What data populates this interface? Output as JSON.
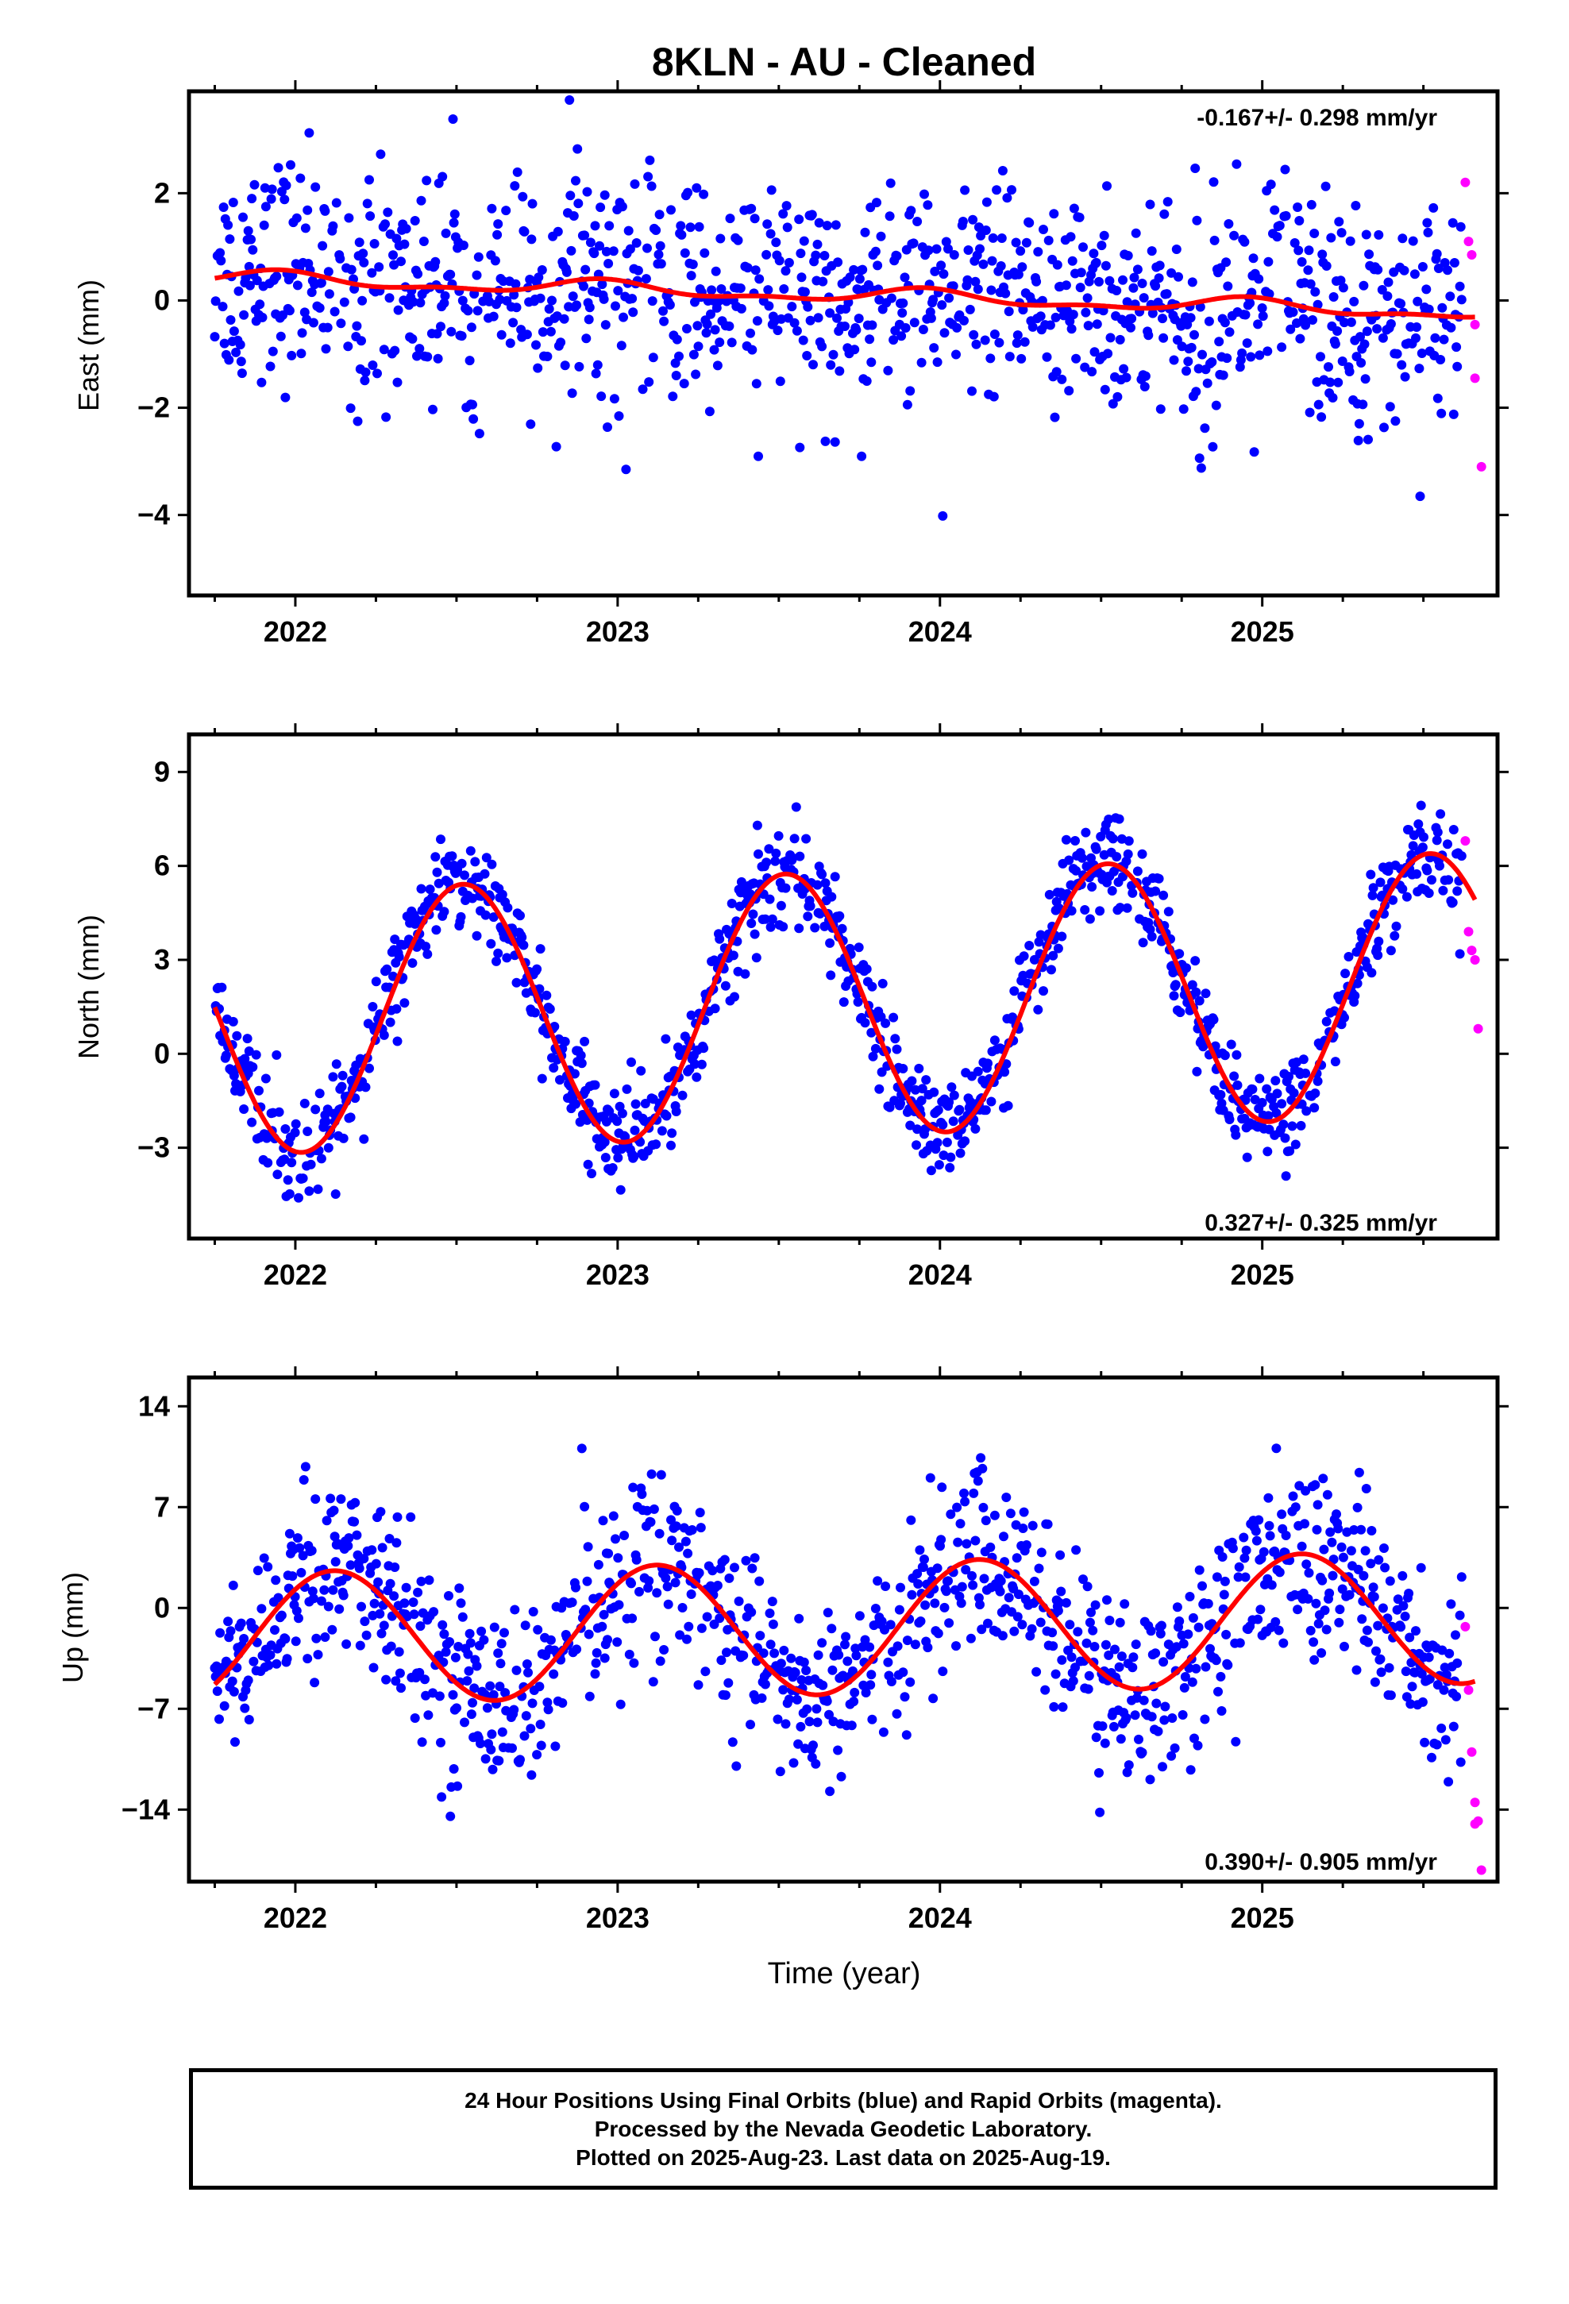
{
  "title": "8KLN  - AU - Cleaned",
  "xlabel": "Time (year)",
  "x_ticks": [
    "2022",
    "2023",
    "2024",
    "2025"
  ],
  "colors": {
    "final": "#0000ff",
    "rapid": "#ff00ff",
    "model": "#ff0000"
  },
  "footer": {
    "line1": "24 Hour Positions Using Final Orbits (blue) and Rapid Orbits (magenta).",
    "line2": "Processed by the Nevada Geodetic Laboratory.",
    "line3": "Plotted on 2025-Aug-23. Last data on 2025-Aug-19."
  },
  "chart_data": [
    {
      "type": "scatter",
      "component": "East",
      "ylabel": "East (mm)",
      "rate": "-0.167+/- 0.298 mm/yr",
      "rate_placement": "top-right",
      "xlim": [
        2021.67,
        2025.73
      ],
      "ylim": [
        -5.5,
        3.9
      ],
      "yticks": [
        -4,
        -2,
        0,
        2
      ],
      "ytick_labels": [
        "−4",
        "−2",
        "0",
        "2"
      ],
      "fit": {
        "offset": 0.1,
        "trend": -0.167,
        "annual_amp": 0.12,
        "annual_peak": 2021.95,
        "semi_amp": 0.06,
        "noise": 1.05,
        "start_value": 0.33,
        "end_value": -0.18
      },
      "rapid_points": [
        [
          2025.63,
          2.2
        ],
        [
          2025.64,
          1.1
        ],
        [
          2025.65,
          0.85
        ],
        [
          2025.66,
          -0.45
        ],
        [
          2025.66,
          -1.45
        ],
        [
          2025.68,
          -3.1
        ]
      ],
      "series": [
        {
          "name": "Final Orbits",
          "kind": "points"
        },
        {
          "name": "Rapid Orbits",
          "kind": "points"
        },
        {
          "name": "Model",
          "kind": "line"
        }
      ]
    },
    {
      "type": "scatter",
      "component": "North",
      "ylabel": "North (mm)",
      "rate": "0.327+/- 0.325 mm/yr",
      "rate_placement": "bottom-right",
      "xlim": [
        2021.67,
        2025.73
      ],
      "ylim": [
        -5.9,
        10.2
      ],
      "yticks": [
        -3,
        0,
        3,
        6,
        9
      ],
      "ytick_labels": [
        "−3",
        "0",
        "3",
        "6",
        "9"
      ],
      "fit": {
        "offset": 1.6,
        "trend": 0.327,
        "annual_amp": 4.2,
        "annual_peak": 2022.52,
        "semi_amp": 0.0,
        "noise": 0.75,
        "start_value": 0.7,
        "end_value": 5.2
      },
      "rapid_points": [
        [
          2025.63,
          6.8
        ],
        [
          2025.64,
          3.9
        ],
        [
          2025.65,
          3.3
        ],
        [
          2025.66,
          3.0
        ],
        [
          2025.67,
          0.8
        ]
      ],
      "series": [
        {
          "name": "Final Orbits",
          "kind": "points"
        },
        {
          "name": "Rapid Orbits",
          "kind": "points"
        },
        {
          "name": "Model",
          "kind": "line"
        }
      ]
    },
    {
      "type": "scatter",
      "component": "Up",
      "ylabel": "Up (mm)",
      "rate": "0.390+/- 0.905 mm/yr",
      "rate_placement": "bottom-right",
      "xlim": [
        2021.67,
        2025.73
      ],
      "ylim": [
        -19.0,
        16.0
      ],
      "yticks": [
        -14,
        -7,
        0,
        7,
        14
      ],
      "ytick_labels": [
        "−14",
        "−7",
        "0",
        "7",
        "14"
      ],
      "fit": {
        "offset": -1.4,
        "trend": 0.39,
        "annual_amp": 4.6,
        "annual_peak": 2022.12,
        "semi_amp": 0.0,
        "noise": 3.2,
        "start_value": -5.5,
        "end_value": -5.0
      },
      "rapid_points": [
        [
          2025.63,
          -1.3
        ],
        [
          2025.64,
          -5.7
        ],
        [
          2025.65,
          -10.0
        ],
        [
          2025.66,
          -13.5
        ],
        [
          2025.66,
          -15.0
        ],
        [
          2025.67,
          -14.8
        ],
        [
          2025.68,
          -18.2
        ]
      ],
      "series": [
        {
          "name": "Final Orbits",
          "kind": "points"
        },
        {
          "name": "Rapid Orbits",
          "kind": "points"
        },
        {
          "name": "Model",
          "kind": "line"
        }
      ]
    }
  ]
}
